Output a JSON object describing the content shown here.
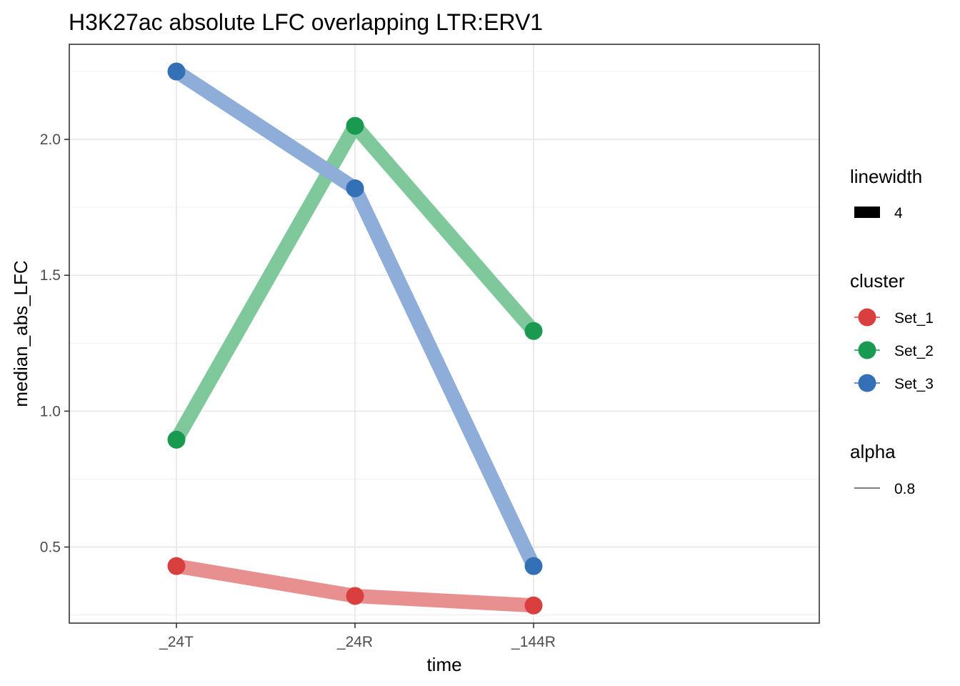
{
  "chart_data": {
    "type": "line",
    "title": "H3K27ac absolute LFC overlapping LTR:ERV1",
    "xlabel": "time",
    "ylabel": "median_abs_LFC",
    "categories": [
      "_24T",
      "_24R",
      "_144R"
    ],
    "ylim": [
      0.22,
      2.35
    ],
    "yticks": [
      0.5,
      1.0,
      1.5,
      2.0
    ],
    "ytick_labels": [
      "0.5",
      "1.0",
      "1.5",
      "2.0"
    ],
    "grid": true,
    "series": [
      {
        "name": "Set_1",
        "color": "#D93F3F",
        "line_color": "#E88F90",
        "values": [
          0.43,
          0.32,
          0.285
        ]
      },
      {
        "name": "Set_2",
        "color": "#1A9A50",
        "line_color": "#7FC89C",
        "values": [
          0.895,
          2.05,
          1.295
        ]
      },
      {
        "name": "Set_3",
        "color": "#3370B5",
        "line_color": "#8EADD9",
        "values": [
          2.25,
          1.82,
          0.43
        ]
      }
    ],
    "legend": {
      "placement": "right",
      "linewidth": {
        "title": "linewidth",
        "label": "4"
      },
      "cluster": {
        "title": "cluster"
      },
      "alpha": {
        "title": "alpha",
        "label": "0.8"
      }
    }
  }
}
